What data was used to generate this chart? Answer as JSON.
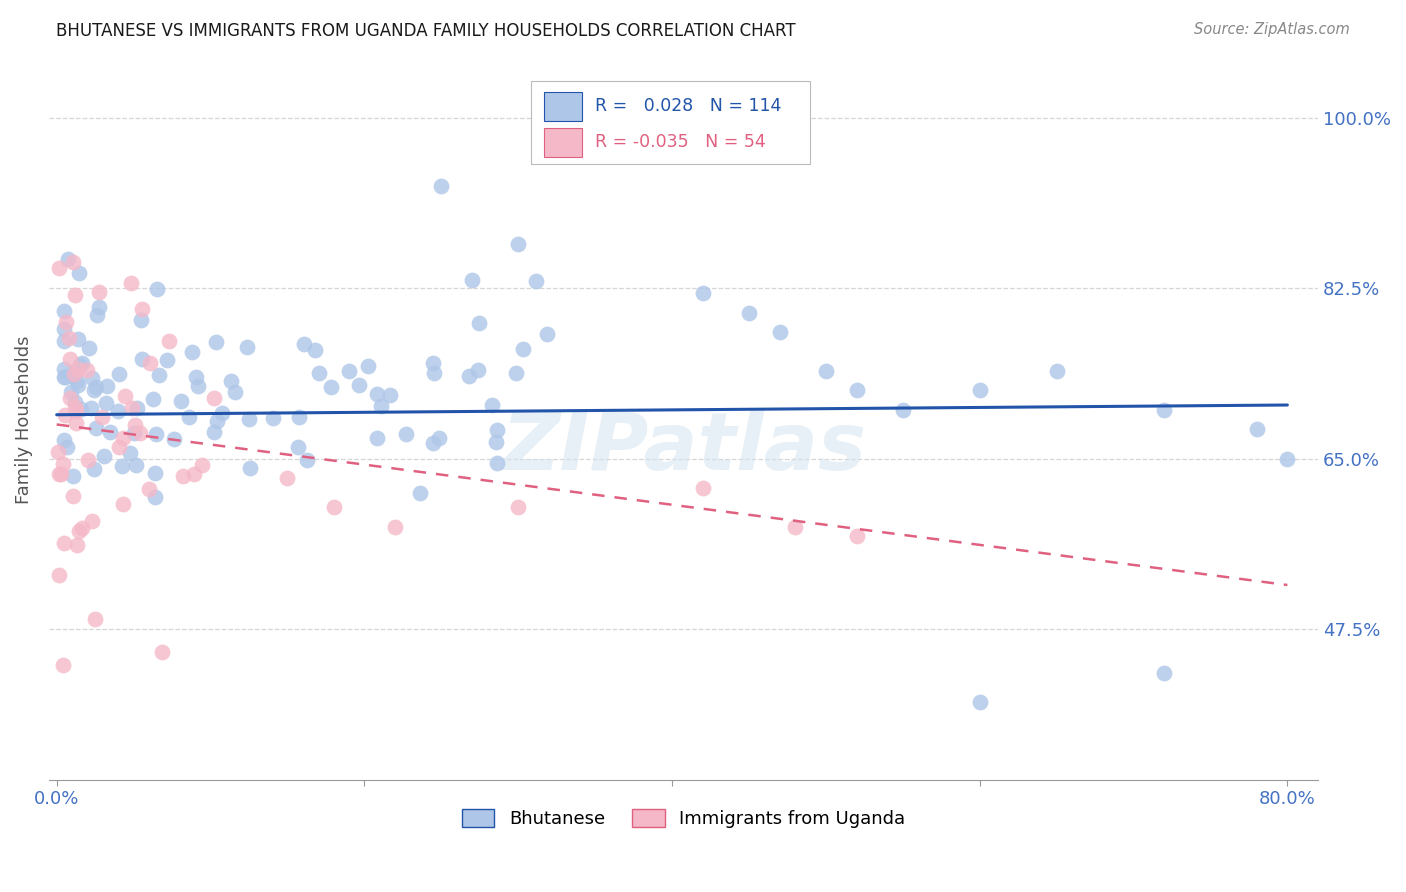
{
  "title": "BHUTANESE VS IMMIGRANTS FROM UGANDA FAMILY HOUSEHOLDS CORRELATION CHART",
  "source": "Source: ZipAtlas.com",
  "ylabel": "Family Households",
  "legend_entries": [
    "Bhutanese",
    "Immigrants from Uganda"
  ],
  "blue_R": 0.028,
  "blue_N": 114,
  "pink_R": -0.035,
  "pink_N": 54,
  "blue_color": "#aec6e8",
  "pink_color": "#f5b8c8",
  "blue_line_color": "#2255aa",
  "pink_line_color": "#e06080",
  "watermark": "ZIPatlas",
  "xlim_min": -0.005,
  "xlim_max": 0.82,
  "ylim_min": 0.32,
  "ylim_max": 1.06,
  "ytick_positions": [
    0.475,
    0.65,
    0.825,
    1.0
  ],
  "ytick_labels": [
    "47.5%",
    "65.0%",
    "82.5%",
    "100.0%"
  ],
  "xtick_positions": [
    0.0,
    0.2,
    0.4,
    0.6,
    0.8
  ],
  "xtick_labels": [
    "0.0%",
    "",
    "",
    "",
    "80.0%"
  ],
  "title_color": "#1a1a1a",
  "axis_label_color": "#555555",
  "tick_label_color": "#4472c4",
  "grid_color": "#cccccc",
  "background_color": "#ffffff",
  "blue_line_start_x": 0.0,
  "blue_line_end_x": 0.8,
  "blue_line_start_y": 0.695,
  "blue_line_end_y": 0.705,
  "pink_line_start_x": 0.0,
  "pink_line_end_x": 0.8,
  "pink_line_start_y": 0.685,
  "pink_line_end_y": 0.52
}
